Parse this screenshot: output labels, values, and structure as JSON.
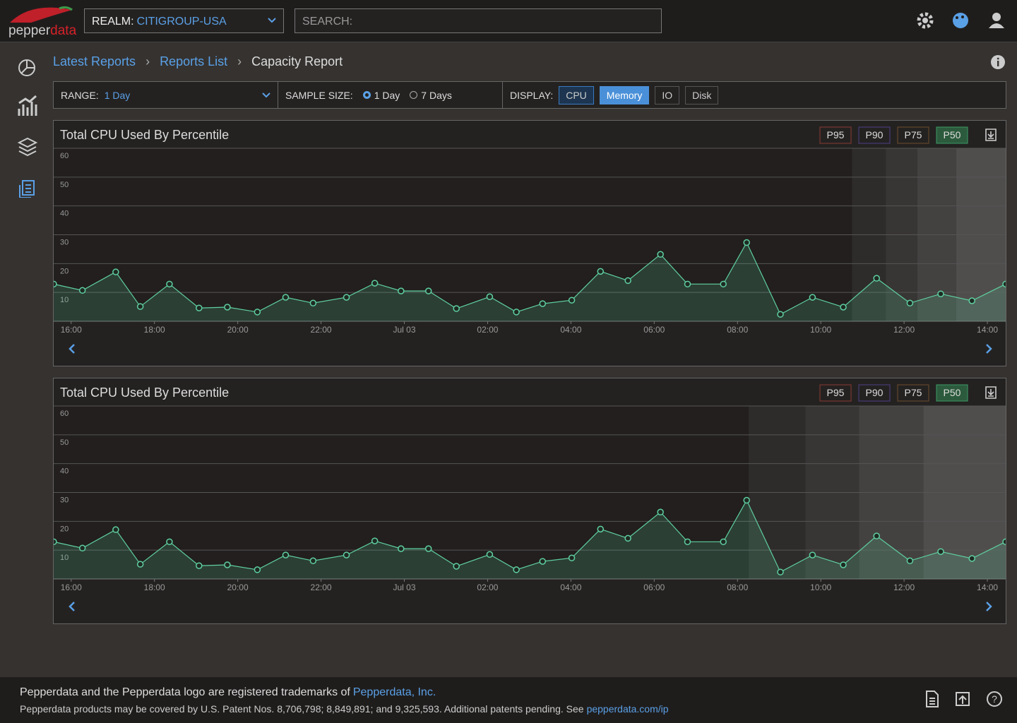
{
  "header": {
    "logo": [
      "pepper",
      "data"
    ],
    "realm_label": "REALM:",
    "realm": "CITIGROUP-USA",
    "search": "SEARCH:"
  },
  "breadcrumb": [
    "Latest Reports",
    "Reports List",
    "Capacity Report"
  ],
  "controls": {
    "range_label": "RANGE:",
    "range": "1 Day",
    "sample_label": "SAMPLE SIZE:",
    "sample_options": [
      "1 Day",
      "7 Days"
    ],
    "sample_selected": "1 Day",
    "display_label": "DISPLAY:",
    "display_options": [
      "CPU",
      "Memory",
      "IO",
      "Disk"
    ],
    "display_selected": "Memory"
  },
  "chart_data": [
    {
      "type": "line",
      "title": "Total CPU Used By Percentile",
      "legend": [
        {
          "name": "P95",
          "color": "#8a3a32"
        },
        {
          "name": "P90",
          "color": "#4e3f86"
        },
        {
          "name": "P75",
          "color": "#6e4c2c"
        },
        {
          "name": "P50",
          "color": "#3c9a66"
        }
      ],
      "legend_active": "P50",
      "x": [
        15.58,
        16.27,
        17.07,
        17.66,
        18.36,
        19.07,
        19.75,
        20.47,
        21.15,
        21.81,
        22.61,
        23.29,
        23.92,
        24.58,
        25.25,
        26.05,
        26.69,
        27.32,
        28.02,
        28.71,
        29.37,
        30.15,
        30.8,
        31.66,
        32.22,
        33.03,
        33.8,
        34.54,
        35.34,
        36.14,
        36.88,
        37.63,
        38.44
      ],
      "values": [
        12.9,
        10.7,
        17.1,
        5.1,
        12.9,
        4.6,
        4.9,
        3.2,
        8.3,
        6.3,
        8.3,
        13.2,
        10.5,
        10.5,
        4.4,
        8.5,
        3.2,
        6.1,
        7.3,
        17.3,
        14.1,
        23.2,
        12.9,
        12.9,
        27.3,
        2.4,
        8.3,
        4.9,
        14.9,
        6.3,
        9.5,
        7.1,
        12.9
      ],
      "color": "#5fd0a0",
      "xlim": [
        15.58,
        38.44
      ],
      "xticks": [
        {
          "value": 16,
          "label": "16:00"
        },
        {
          "value": 18,
          "label": "18:00"
        },
        {
          "value": 20,
          "label": "20:00"
        },
        {
          "value": 22,
          "label": "22:00"
        },
        {
          "value": 24,
          "label": "Jul 03"
        },
        {
          "value": 26,
          "label": "02:00"
        },
        {
          "value": 28,
          "label": "04:00"
        },
        {
          "value": 30,
          "label": "06:00"
        },
        {
          "value": 32,
          "label": "08:00"
        },
        {
          "value": 34,
          "label": "10:00"
        },
        {
          "value": 36,
          "label": "12:00"
        },
        {
          "value": 38,
          "label": "14:00"
        }
      ],
      "ylim": [
        0,
        60
      ],
      "yticks": [
        10,
        20,
        30,
        40,
        50,
        60
      ],
      "grid": true,
      "shaded_from": [
        34.75,
        35.56,
        36.32,
        37.25
      ],
      "shade_colors": [
        "#2e2c2b",
        "#383635",
        "#444241",
        "#504e4d"
      ]
    },
    {
      "type": "line",
      "title": "Total CPU Used By Percentile",
      "legend": [
        {
          "name": "P95",
          "color": "#8a3a32"
        },
        {
          "name": "P90",
          "color": "#4e3f86"
        },
        {
          "name": "P75",
          "color": "#6e4c2c"
        },
        {
          "name": "P50",
          "color": "#3c9a66"
        }
      ],
      "legend_active": "P50",
      "x": [
        15.58,
        16.27,
        17.07,
        17.66,
        18.36,
        19.07,
        19.75,
        20.47,
        21.15,
        21.81,
        22.61,
        23.29,
        23.92,
        24.58,
        25.25,
        26.05,
        26.69,
        27.32,
        28.02,
        28.71,
        29.37,
        30.15,
        30.8,
        31.66,
        32.22,
        33.03,
        33.8,
        34.54,
        35.34,
        36.14,
        36.88,
        37.63,
        38.44
      ],
      "values": [
        12.9,
        10.7,
        17.1,
        5.1,
        12.9,
        4.6,
        4.9,
        3.2,
        8.3,
        6.3,
        8.3,
        13.2,
        10.5,
        10.5,
        4.4,
        8.5,
        3.2,
        6.1,
        7.3,
        17.3,
        14.1,
        23.2,
        12.9,
        12.9,
        27.3,
        2.4,
        8.3,
        4.9,
        14.9,
        6.3,
        9.5,
        7.1,
        12.9
      ],
      "color": "#5fd0a0",
      "xlim": [
        15.58,
        38.44
      ],
      "xticks": [
        {
          "value": 16,
          "label": "16:00"
        },
        {
          "value": 18,
          "label": "18:00"
        },
        {
          "value": 20,
          "label": "20:00"
        },
        {
          "value": 22,
          "label": "22:00"
        },
        {
          "value": 24,
          "label": "Jul 03"
        },
        {
          "value": 26,
          "label": "02:00"
        },
        {
          "value": 28,
          "label": "04:00"
        },
        {
          "value": 30,
          "label": "06:00"
        },
        {
          "value": 32,
          "label": "08:00"
        },
        {
          "value": 34,
          "label": "10:00"
        },
        {
          "value": 36,
          "label": "12:00"
        },
        {
          "value": 38,
          "label": "14:00"
        }
      ],
      "ylim": [
        0,
        60
      ],
      "yticks": [
        10,
        20,
        30,
        40,
        50,
        60
      ],
      "grid": true,
      "shaded_from": [
        32.27,
        33.63,
        34.92,
        36.46
      ],
      "shade_colors": [
        "#2e2c2b",
        "#383635",
        "#444241",
        "#504e4d"
      ]
    }
  ],
  "footer": {
    "line1": "Pepperdata and the Pepperdata logo are registered trademarks of",
    "link1": "Pepperdata, Inc.",
    "line2": "Pepperdata products may be covered by U.S. Patent Nos. 8,706,798; 8,849,891; and 9,325,593. Additional patents pending. See",
    "link2": "pepperdata.com/ip"
  }
}
